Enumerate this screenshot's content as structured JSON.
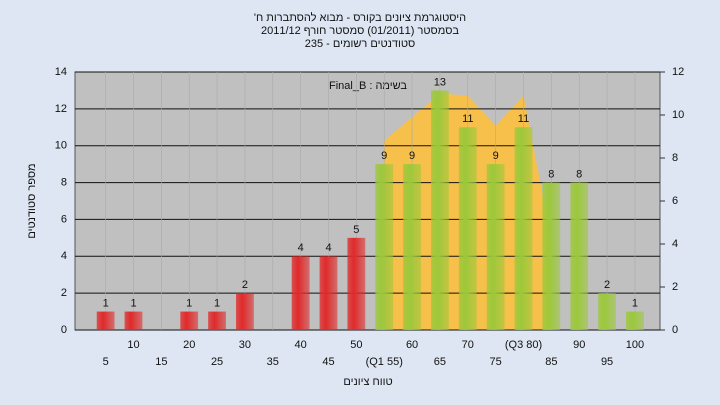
{
  "chart_data": {
    "type": "bar",
    "title": [
      "'היסטוגרמת ציונים בקורס - מבוא להסתברות ח",
      "בסמסטר  (01/2011)  סמסטר חורף 2011/12",
      "סטודנטים רשומים - 235"
    ],
    "annotation": "Final_B : בשימה",
    "xlabel": "טווח ציונים",
    "ylabel": "מספר סטודנטים",
    "categories": [
      "5",
      "10",
      "15",
      "20",
      "25",
      "30",
      "35",
      "40",
      "45",
      "50",
      "(Q1 55)",
      "60",
      "65",
      "70",
      "75",
      "(Q3 80)",
      "85",
      "90",
      "95",
      "100"
    ],
    "values": [
      1,
      1,
      0,
      1,
      1,
      2,
      0,
      4,
      4,
      5,
      9,
      9,
      13,
      11,
      9,
      11,
      8,
      8,
      2,
      1
    ],
    "colors": [
      "#e02a2a",
      "#e02a2a",
      "#e02a2a",
      "#e02a2a",
      "#e02a2a",
      "#e02a2a",
      "#e02a2a",
      "#e02a2a",
      "#e02a2a",
      "#e02a2a",
      "#9cc83a",
      "#9cc83a",
      "#9cc83a",
      "#9cc83a",
      "#9cc83a",
      "#9cc83a",
      "#9cc83a",
      "#9cc83a",
      "#9cc83a",
      "#9cc83a"
    ],
    "area": {
      "axis": "y2",
      "color": "#f7c04a",
      "values": [
        null,
        null,
        null,
        null,
        null,
        null,
        null,
        null,
        null,
        null,
        8.8,
        9.9,
        11,
        10.9,
        9.5,
        10.9,
        4.2,
        null,
        null,
        null
      ]
    },
    "ylim": [
      0,
      14
    ],
    "yticks": [
      0,
      2,
      4,
      6,
      8,
      10,
      12,
      14
    ],
    "y2lim": [
      0,
      12
    ],
    "y2ticks": [
      0,
      2,
      4,
      6,
      8,
      10,
      12
    ],
    "grid": true
  }
}
